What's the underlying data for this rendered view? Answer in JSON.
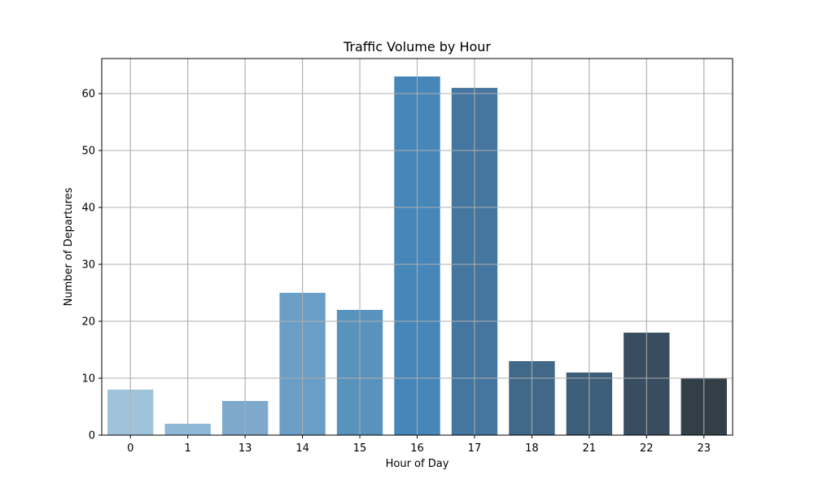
{
  "chart_data": {
    "type": "bar",
    "title": "Traffic Volume by Hour",
    "xlabel": "Hour of Day",
    "ylabel": "Number of Departures",
    "categories": [
      "0",
      "1",
      "13",
      "14",
      "15",
      "16",
      "17",
      "18",
      "21",
      "22",
      "23"
    ],
    "values": [
      8,
      2,
      6,
      25,
      22,
      63,
      61,
      13,
      11,
      18,
      10
    ],
    "bar_colors": [
      "#a0c3dc",
      "#8fb7d6",
      "#7ea9cc",
      "#6a9ec6",
      "#5893be",
      "#4686b8",
      "#45769f",
      "#416886",
      "#3c5e78",
      "#384d60",
      "#323f47"
    ],
    "yticks": [
      0,
      10,
      20,
      30,
      40,
      50,
      60
    ],
    "ylim": [
      0,
      66.15
    ],
    "grid": true,
    "grid_color": "#b0b0b0"
  }
}
